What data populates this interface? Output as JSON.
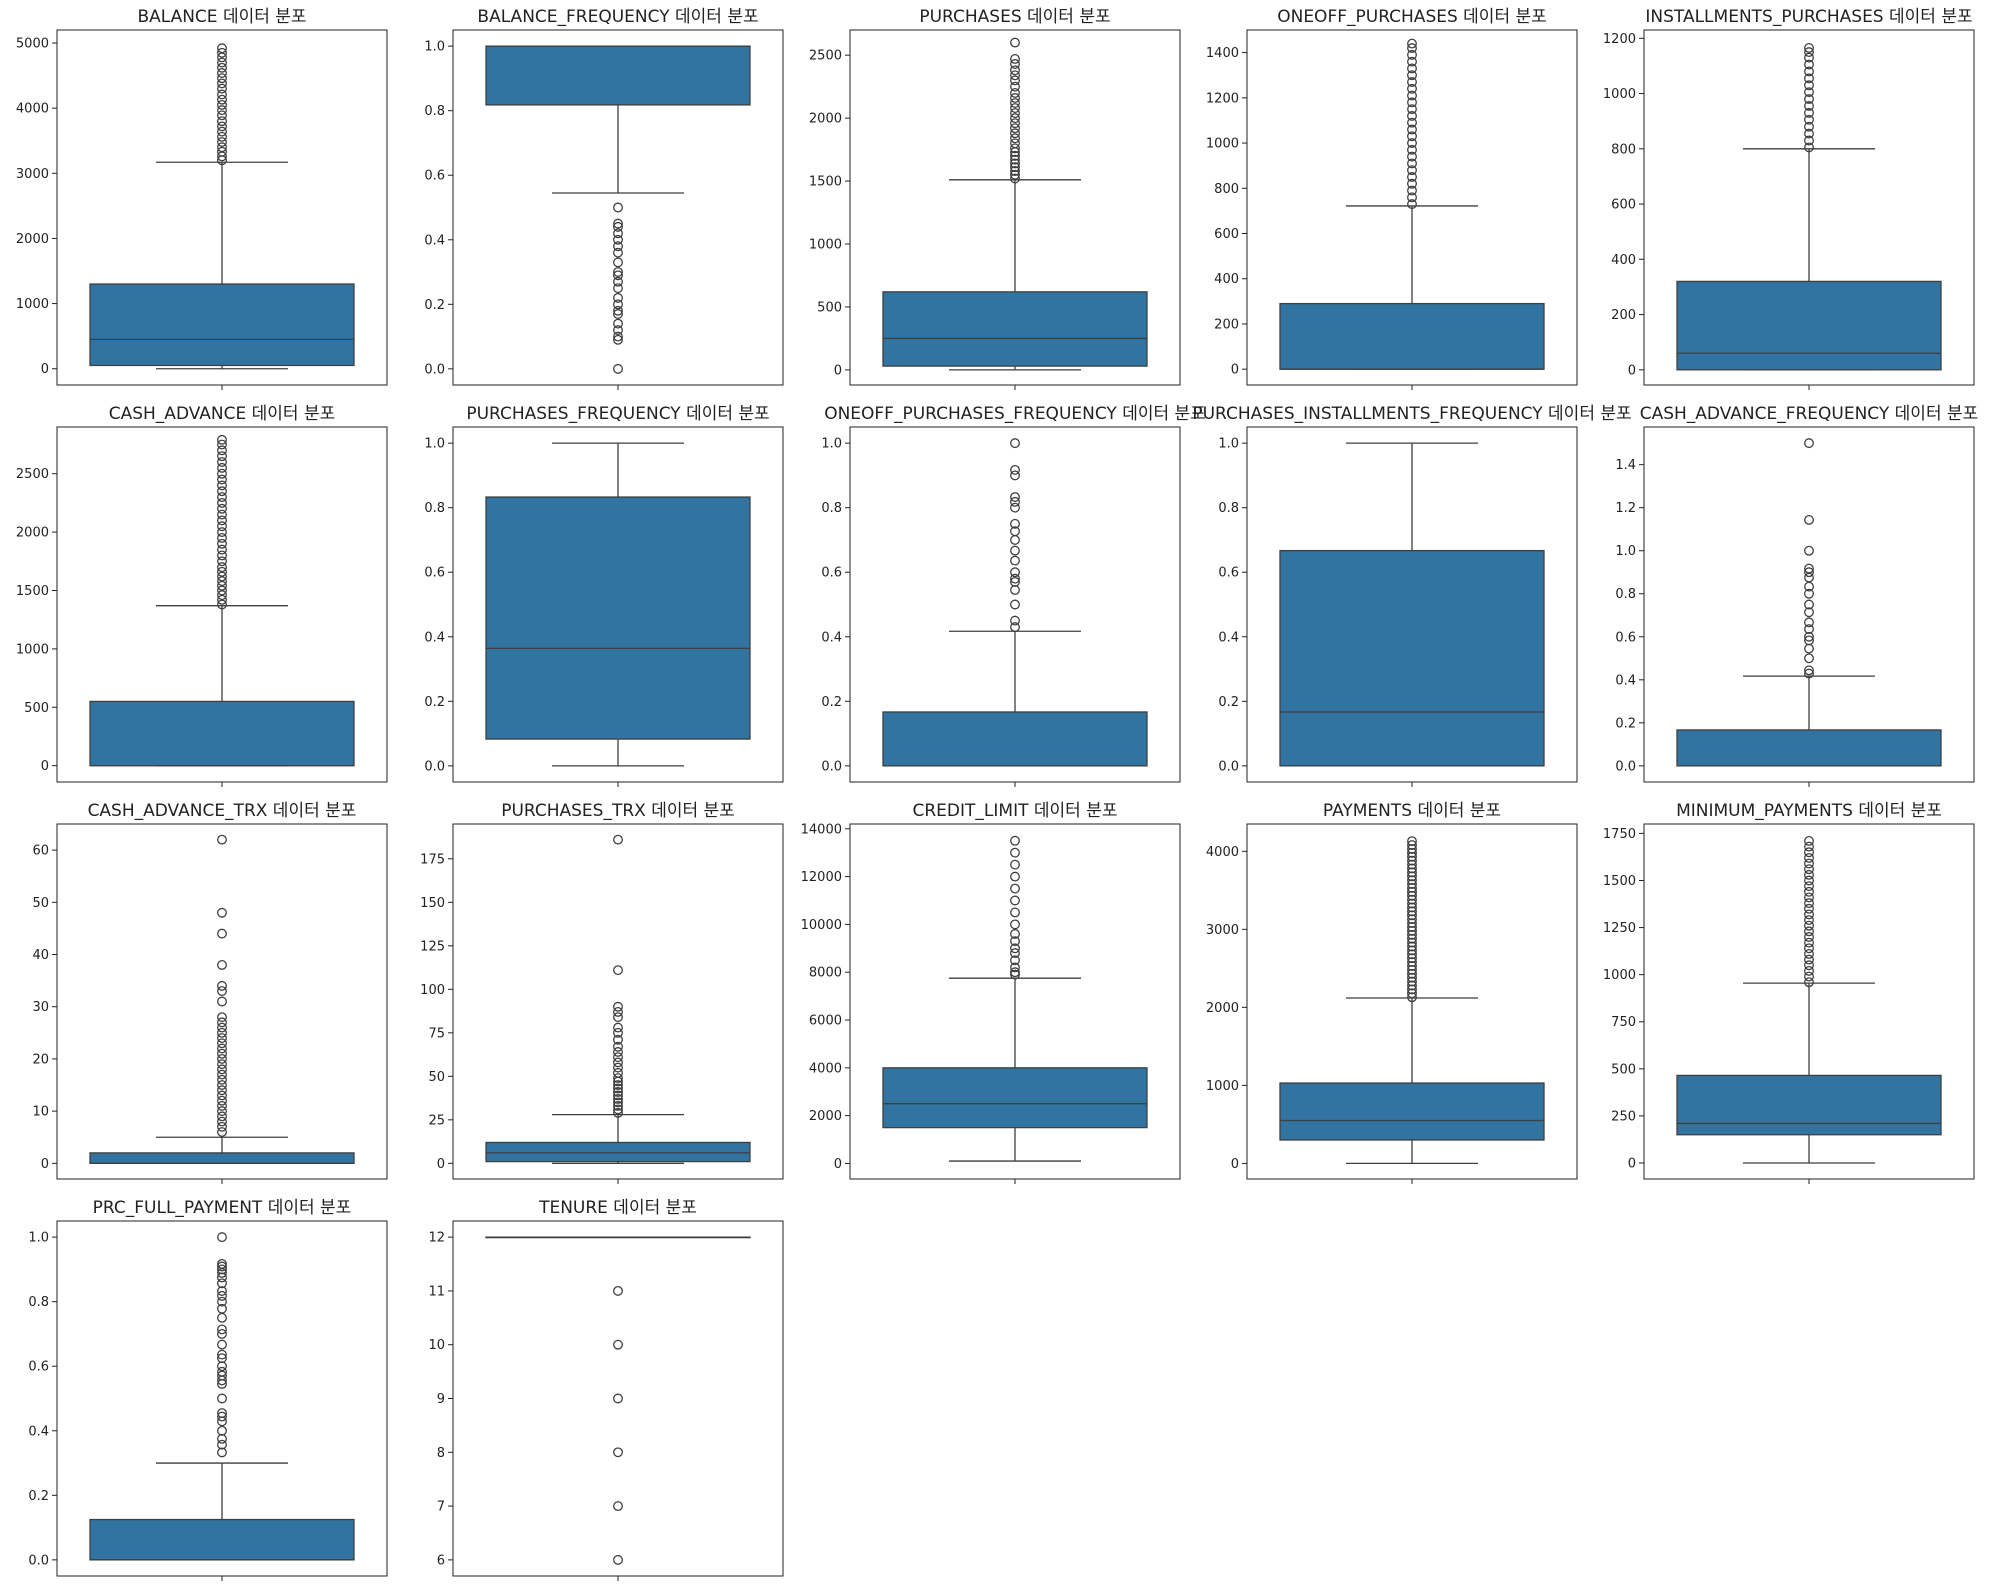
{
  "figure": {
    "box_color": "#3274a1",
    "edge_color": "#3f3f3f"
  },
  "chart_data": [
    {
      "type": "box",
      "title": "BALANCE 데이터 분포",
      "ylim": [
        -250,
        5200
      ],
      "yticks": [
        0,
        1000,
        2000,
        3000,
        4000,
        5000
      ],
      "stats": {
        "whisker_low": 0,
        "q1": 50,
        "median": 450,
        "q3": 1300,
        "whisker_high": 3170
      },
      "outliers": [
        3200,
        3260,
        3330,
        3400,
        3480,
        3560,
        3640,
        3720,
        3800,
        3890,
        3970,
        4050,
        4130,
        4210,
        4300,
        4380,
        4460,
        4540,
        4620,
        4700,
        4780,
        4850,
        4920
      ]
    },
    {
      "type": "box",
      "title": "BALANCE_FREQUENCY 데이터 분포",
      "ylim": [
        -0.05,
        1.05
      ],
      "yticks": [
        0.0,
        0.2,
        0.4,
        0.6,
        0.8,
        1.0
      ],
      "stats": {
        "whisker_low": 0.545,
        "q1": 0.818,
        "median": 1.0,
        "q3": 1.0,
        "whisker_high": 1.0
      },
      "outliers": [
        0.0,
        0.09,
        0.1,
        0.12,
        0.14,
        0.17,
        0.18,
        0.2,
        0.22,
        0.25,
        0.27,
        0.29,
        0.3,
        0.33,
        0.36,
        0.38,
        0.4,
        0.42,
        0.44,
        0.45,
        0.5
      ]
    },
    {
      "type": "box",
      "title": "PURCHASES 데이터 분포",
      "ylim": [
        -120,
        2700
      ],
      "yticks": [
        0,
        500,
        1000,
        1500,
        2000,
        2500
      ],
      "stats": {
        "whisker_low": 0,
        "q1": 30,
        "median": 250,
        "q3": 620,
        "whisker_high": 1510
      },
      "outliers": [
        1520,
        1550,
        1580,
        1610,
        1640,
        1670,
        1700,
        1730,
        1760,
        1800,
        1840,
        1880,
        1920,
        1960,
        2000,
        2040,
        2080,
        2120,
        2160,
        2200,
        2250,
        2300,
        2340,
        2380,
        2430,
        2470,
        2600
      ]
    },
    {
      "type": "box",
      "title": "ONEOFF_PURCHASES 데이터 분포",
      "ylim": [
        -70,
        1500
      ],
      "yticks": [
        0,
        200,
        400,
        600,
        800,
        1000,
        1200,
        1400
      ],
      "stats": {
        "whisker_low": 0,
        "q1": 0,
        "median": 0,
        "q3": 290,
        "whisker_high": 722
      },
      "outliers": [
        730,
        760,
        790,
        820,
        850,
        880,
        910,
        940,
        970,
        1000,
        1030,
        1060,
        1090,
        1120,
        1150,
        1180,
        1210,
        1240,
        1270,
        1300,
        1330,
        1360,
        1390,
        1420,
        1440
      ]
    },
    {
      "type": "box",
      "title": "INSTALLMENTS_PURCHASES 데이터 분포",
      "ylim": [
        -55,
        1230
      ],
      "yticks": [
        0,
        200,
        400,
        600,
        800,
        1000,
        1200
      ],
      "stats": {
        "whisker_low": 0,
        "q1": 0,
        "median": 60,
        "q3": 320,
        "whisker_high": 800
      },
      "outliers": [
        805,
        830,
        855,
        880,
        905,
        930,
        955,
        980,
        1005,
        1030,
        1055,
        1080,
        1105,
        1130,
        1150,
        1165
      ]
    },
    {
      "type": "box",
      "title": "CASH_ADVANCE 데이터 분포",
      "ylim": [
        -140,
        2900
      ],
      "yticks": [
        0,
        500,
        1000,
        1500,
        2000,
        2500
      ],
      "stats": {
        "whisker_low": 0,
        "q1": 0,
        "median": 0,
        "q3": 550,
        "whisker_high": 1370
      },
      "outliers": [
        1380,
        1420,
        1460,
        1500,
        1540,
        1580,
        1620,
        1660,
        1700,
        1750,
        1800,
        1850,
        1900,
        1950,
        2000,
        2050,
        2100,
        2150,
        2200,
        2250,
        2300,
        2350,
        2400,
        2450,
        2500,
        2550,
        2600,
        2650,
        2700,
        2750,
        2790
      ]
    },
    {
      "type": "box",
      "title": "PURCHASES_FREQUENCY 데이터 분포",
      "ylim": [
        -0.05,
        1.05
      ],
      "yticks": [
        0.0,
        0.2,
        0.4,
        0.6,
        0.8,
        1.0
      ],
      "stats": {
        "whisker_low": 0.0,
        "q1": 0.083,
        "median": 0.364,
        "q3": 0.833,
        "whisker_high": 1.0
      },
      "outliers": []
    },
    {
      "type": "box",
      "title": "ONEOFF_PURCHASES_FREQUENCY 데이터 분포",
      "ylim": [
        -0.05,
        1.05
      ],
      "yticks": [
        0.0,
        0.2,
        0.4,
        0.6,
        0.8,
        1.0
      ],
      "stats": {
        "whisker_low": 0.0,
        "q1": 0.0,
        "median": 0.0,
        "q3": 0.167,
        "whisker_high": 0.417
      },
      "outliers": [
        0.43,
        0.45,
        0.5,
        0.545,
        0.57,
        0.58,
        0.6,
        0.636,
        0.667,
        0.7,
        0.727,
        0.75,
        0.8,
        0.818,
        0.833,
        0.9,
        0.917,
        1.0
      ]
    },
    {
      "type": "box",
      "title": "PURCHASES_INSTALLMENTS_FREQUENCY 데이터 분포",
      "ylim": [
        -0.05,
        1.05
      ],
      "yticks": [
        0.0,
        0.2,
        0.4,
        0.6,
        0.8,
        1.0
      ],
      "stats": {
        "whisker_low": 0.0,
        "q1": 0.0,
        "median": 0.167,
        "q3": 0.667,
        "whisker_high": 1.0
      },
      "outliers": []
    },
    {
      "type": "box",
      "title": "CASH_ADVANCE_FREQUENCY 데이터 분포",
      "ylim": [
        -0.075,
        1.575
      ],
      "yticks": [
        0.0,
        0.2,
        0.4,
        0.6,
        0.8,
        1.0,
        1.2,
        1.4
      ],
      "stats": {
        "whisker_low": 0.0,
        "q1": 0.0,
        "median": 0.0,
        "q3": 0.167,
        "whisker_high": 0.417
      },
      "outliers": [
        0.429,
        0.444,
        0.5,
        0.545,
        0.583,
        0.6,
        0.636,
        0.667,
        0.714,
        0.75,
        0.8,
        0.833,
        0.875,
        0.9,
        0.917,
        1.0,
        1.143,
        1.5
      ]
    },
    {
      "type": "box",
      "title": "CASH_ADVANCE_TRX 데이터 분포",
      "ylim": [
        -3,
        65
      ],
      "yticks": [
        0,
        10,
        20,
        30,
        40,
        50,
        60
      ],
      "stats": {
        "whisker_low": 0,
        "q1": 0,
        "median": 0,
        "q3": 2,
        "whisker_high": 5
      },
      "outliers": [
        6,
        7,
        8,
        9,
        10,
        11,
        12,
        13,
        14,
        15,
        16,
        17,
        18,
        19,
        20,
        21,
        22,
        23,
        24,
        25,
        26,
        27,
        28,
        31,
        33,
        34,
        38,
        44,
        48,
        62
      ]
    },
    {
      "type": "box",
      "title": "PURCHASES_TRX 데이터 분포",
      "ylim": [
        -9,
        195
      ],
      "yticks": [
        0,
        25,
        50,
        75,
        100,
        125,
        150,
        175
      ],
      "stats": {
        "whisker_low": 0,
        "q1": 1,
        "median": 6,
        "q3": 12,
        "whisker_high": 28
      },
      "outliers": [
        29,
        31,
        33,
        35,
        37,
        39,
        41,
        43,
        45,
        47,
        49,
        52,
        55,
        58,
        61,
        64,
        67,
        71,
        75,
        78,
        84,
        87,
        90,
        111,
        186
      ]
    },
    {
      "type": "box",
      "title": "CREDIT_LIMIT 데이터 분포",
      "ylim": [
        -650,
        14200
      ],
      "yticks": [
        0,
        2000,
        4000,
        6000,
        8000,
        10000,
        12000,
        14000
      ],
      "stats": {
        "whisker_low": 100,
        "q1": 1500,
        "median": 2500,
        "q3": 4000,
        "whisker_high": 7750
      },
      "outliers": [
        7900,
        8000,
        8200,
        8500,
        8800,
        9000,
        9300,
        9600,
        10000,
        10500,
        11000,
        11500,
        12000,
        12500,
        13000,
        13500
      ]
    },
    {
      "type": "box",
      "title": "PAYMENTS 데이터 분포",
      "ylim": [
        -200,
        4350
      ],
      "yticks": [
        0,
        1000,
        2000,
        3000,
        4000
      ],
      "stats": {
        "whisker_low": 0,
        "q1": 300,
        "median": 550,
        "q3": 1030,
        "whisker_high": 2120
      },
      "outliers": [
        2130,
        2180,
        2230,
        2280,
        2330,
        2380,
        2430,
        2480,
        2530,
        2580,
        2630,
        2680,
        2730,
        2780,
        2830,
        2880,
        2930,
        2980,
        3030,
        3080,
        3130,
        3180,
        3230,
        3280,
        3330,
        3380,
        3430,
        3480,
        3530,
        3580,
        3630,
        3680,
        3730,
        3780,
        3830,
        3880,
        3930,
        3980,
        4030,
        4080,
        4130
      ]
    },
    {
      "type": "box",
      "title": "MINIMUM_PAYMENTS 데이터 분포",
      "ylim": [
        -85,
        1800
      ],
      "yticks": [
        0,
        250,
        500,
        750,
        1000,
        1250,
        1500,
        1750
      ],
      "stats": {
        "whisker_low": 0,
        "q1": 150,
        "median": 210,
        "q3": 465,
        "whisker_high": 955
      },
      "outliers": [
        960,
        990,
        1020,
        1050,
        1080,
        1110,
        1140,
        1170,
        1200,
        1230,
        1260,
        1290,
        1320,
        1350,
        1380,
        1410,
        1440,
        1470,
        1500,
        1530,
        1560,
        1590,
        1620,
        1650,
        1680,
        1710
      ]
    },
    {
      "type": "box",
      "title": "PRC_FULL_PAYMENT 데이터 분포",
      "ylim": [
        -0.05,
        1.05
      ],
      "yticks": [
        0.0,
        0.2,
        0.4,
        0.6,
        0.8,
        1.0
      ],
      "stats": {
        "whisker_low": 0.0,
        "q1": 0.0,
        "median": 0.0,
        "q3": 0.125,
        "whisker_high": 0.3
      },
      "outliers": [
        0.333,
        0.357,
        0.375,
        0.4,
        0.429,
        0.444,
        0.455,
        0.5,
        0.545,
        0.556,
        0.571,
        0.583,
        0.6,
        0.625,
        0.636,
        0.667,
        0.7,
        0.714,
        0.75,
        0.778,
        0.8,
        0.818,
        0.833,
        0.857,
        0.875,
        0.889,
        0.9,
        0.909,
        0.917,
        1.0
      ]
    },
    {
      "type": "box",
      "title": "TENURE 데이터 분포",
      "ylim": [
        5.7,
        12.3
      ],
      "yticks": [
        6,
        7,
        8,
        9,
        10,
        11,
        12
      ],
      "stats": {
        "whisker_low": 12,
        "q1": 12,
        "median": 12,
        "q3": 12,
        "whisker_high": 12
      },
      "outliers": [
        6,
        7,
        8,
        9,
        10,
        11
      ]
    }
  ]
}
